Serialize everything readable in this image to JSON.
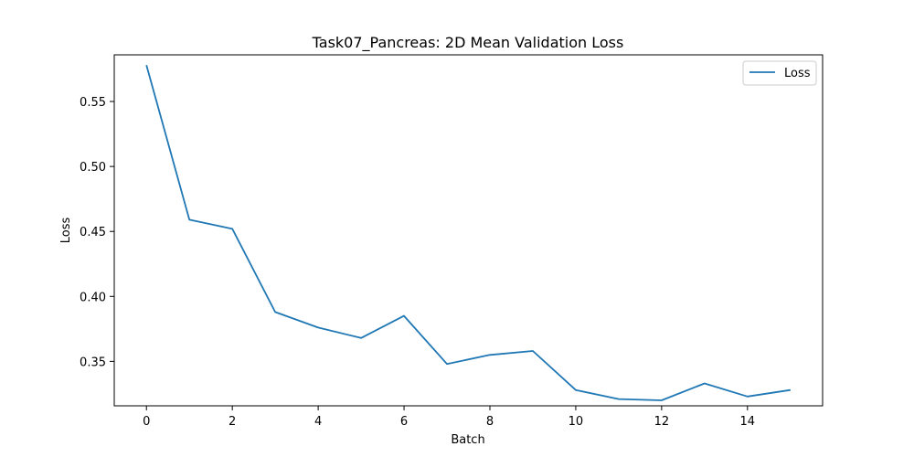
{
  "chart_data": {
    "type": "line",
    "title": "Task07_Pancreas: 2D Mean Validation Loss",
    "xlabel": "Batch",
    "ylabel": "Loss",
    "xlim": [
      -0.75,
      15.75
    ],
    "ylim": [
      0.3158,
      0.5859
    ],
    "xticks": [
      0,
      2,
      4,
      6,
      8,
      10,
      12,
      14
    ],
    "yticks": [
      0.35,
      0.4,
      0.45,
      0.5,
      0.55
    ],
    "xtick_labels": [
      "0",
      "2",
      "4",
      "6",
      "8",
      "10",
      "12",
      "14"
    ],
    "ytick_labels": [
      "0.35",
      "0.40",
      "0.45",
      "0.50",
      "0.55"
    ],
    "grid": false,
    "legend": "top-right",
    "series": [
      {
        "name": "Loss",
        "color": "#1f77b4",
        "x": [
          0,
          1,
          2,
          3,
          4,
          5,
          6,
          7,
          8,
          9,
          10,
          11,
          12,
          13,
          14,
          15
        ],
        "values": [
          0.578,
          0.459,
          0.452,
          0.388,
          0.376,
          0.368,
          0.385,
          0.348,
          0.355,
          0.358,
          0.328,
          0.321,
          0.32,
          0.333,
          0.323,
          0.328
        ]
      }
    ]
  }
}
